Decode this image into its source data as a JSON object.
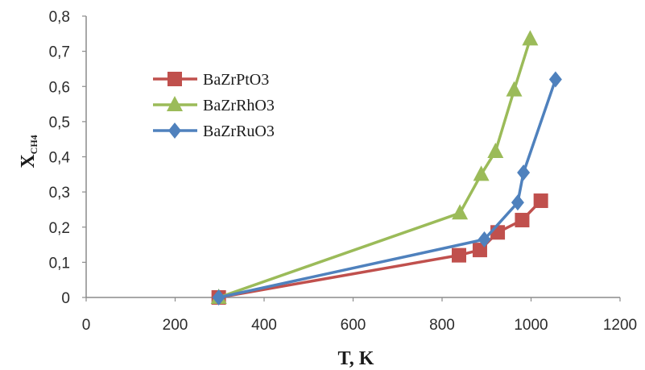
{
  "chart_data": {
    "type": "scatter",
    "title": "",
    "xlabel": "T, K",
    "ylabel_main": "X",
    "ylabel_sub": "CH4",
    "xlim": [
      0,
      1200
    ],
    "ylim": [
      0,
      0.8
    ],
    "x_ticks": [
      0,
      200,
      400,
      600,
      800,
      1000,
      1200
    ],
    "x_tick_labels": [
      "0",
      "200",
      "400",
      "600",
      "800",
      "1000",
      "1200"
    ],
    "y_ticks": [
      0,
      0.1,
      0.2,
      0.3,
      0.4,
      0.5,
      0.6,
      0.7,
      0.8
    ],
    "y_tick_labels": [
      "0",
      "0,1",
      "0,2",
      "0,3",
      "0,4",
      "0,5",
      "0,6",
      "0,7",
      "0,8"
    ],
    "grid": false,
    "legend_position": "upper-left",
    "series": [
      {
        "name": "BaZrPtO3",
        "color": "#c0504d",
        "marker": "square",
        "x": [
          298,
          838,
          885,
          925,
          980,
          1022
        ],
        "y": [
          0.0,
          0.12,
          0.135,
          0.185,
          0.22,
          0.275
        ]
      },
      {
        "name": "BaZrRhO3",
        "color": "#9bbb59",
        "marker": "triangle",
        "x": [
          298,
          840,
          888,
          920,
          962,
          998
        ],
        "y": [
          0.0,
          0.24,
          0.35,
          0.415,
          0.59,
          0.735
        ]
      },
      {
        "name": "BaZrRuO3",
        "color": "#4f81bd",
        "marker": "diamond",
        "x": [
          298,
          895,
          970,
          983,
          1055
        ],
        "y": [
          0.0,
          0.165,
          0.27,
          0.355,
          0.62
        ]
      }
    ]
  }
}
